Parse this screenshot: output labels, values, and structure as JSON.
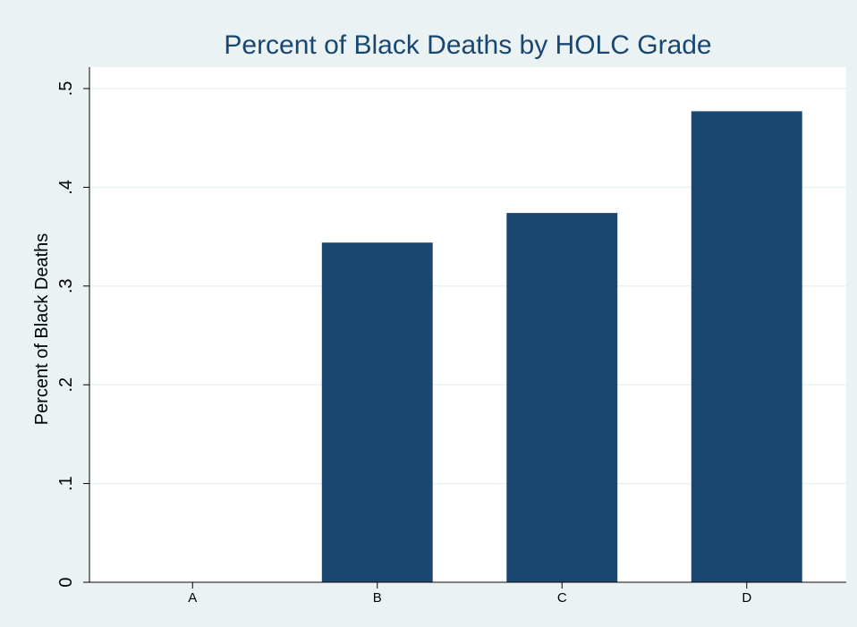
{
  "chart_data": {
    "type": "bar",
    "title": "Percent of Black Deaths by HOLC Grade",
    "xlabel": "",
    "ylabel": "Percent of Black Deaths",
    "categories": [
      "A",
      "B",
      "C",
      "D"
    ],
    "values": [
      0,
      0.344,
      0.374,
      0.477
    ],
    "ylim": [
      0,
      0.5
    ],
    "yticks": [
      0,
      0.1,
      0.2,
      0.3,
      0.4,
      0.5
    ],
    "ytick_labels": [
      "0",
      ".1",
      ".2",
      ".3",
      ".4",
      ".5"
    ],
    "grid": true,
    "legend": "none"
  },
  "colors": {
    "background": "#eaf2f3",
    "plot_area": "#ffffff",
    "bar": "#1a476f",
    "title": "#1a476f",
    "gridline": "#eaf2f3",
    "axis": "#000000",
    "text": "#000000"
  }
}
